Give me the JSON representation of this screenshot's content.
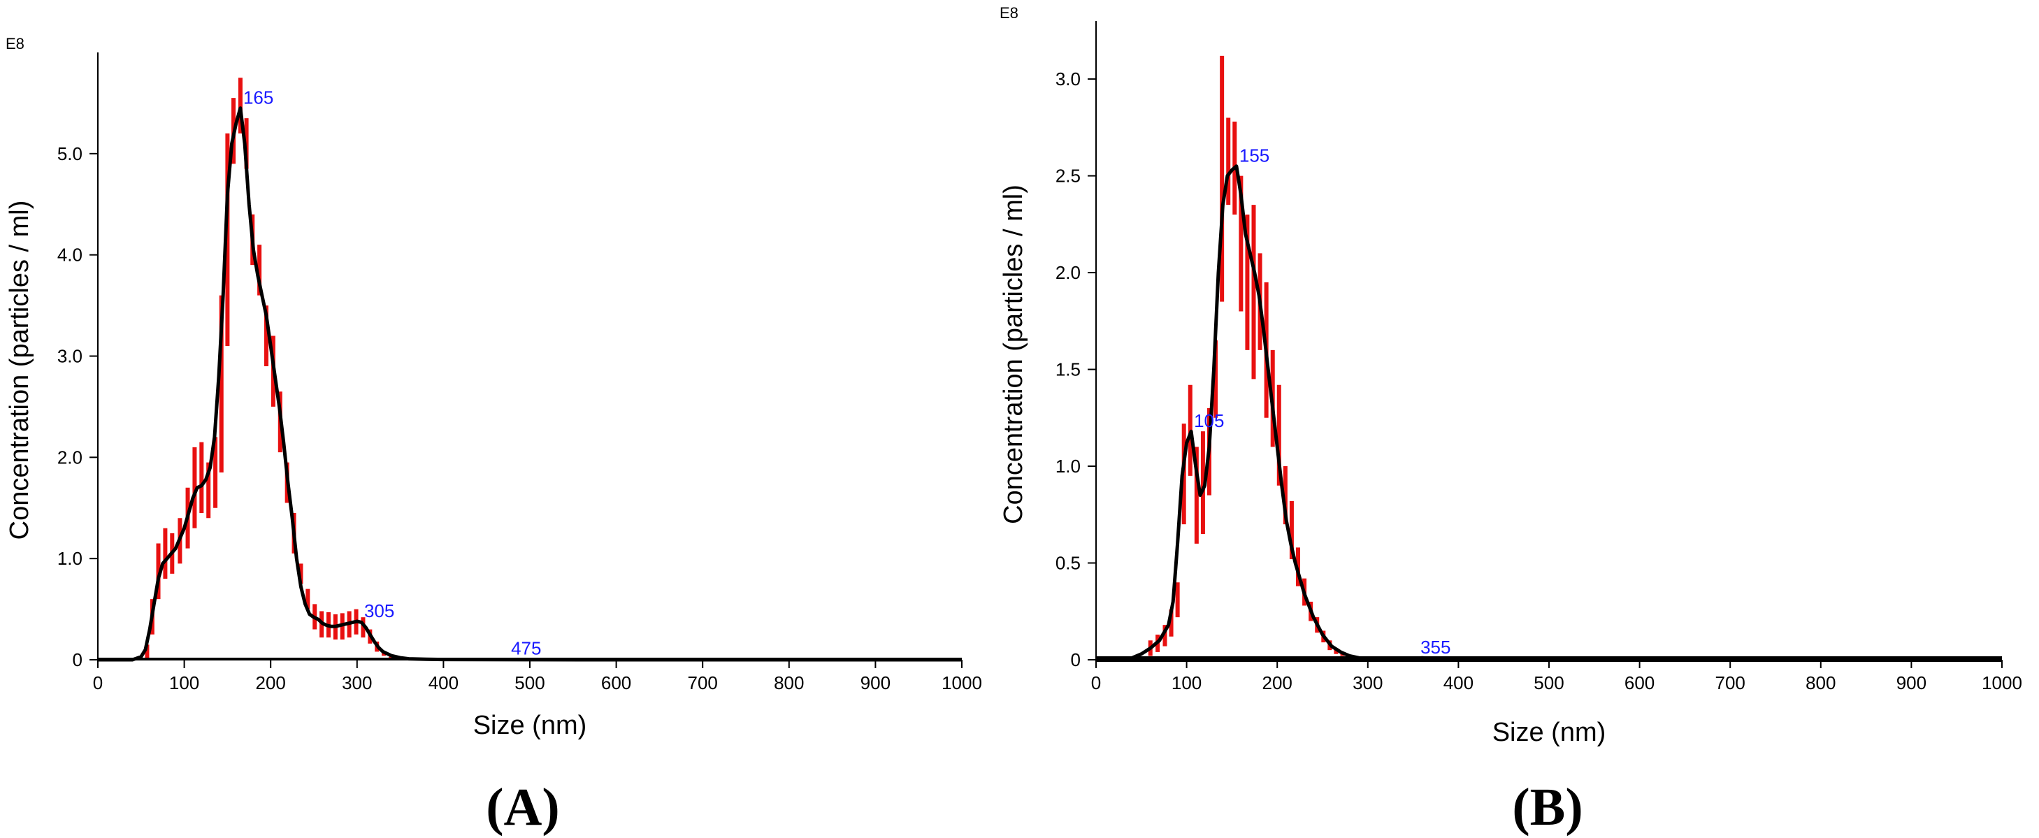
{
  "chart_data": [
    {
      "type": "line",
      "panel_label": "(A)",
      "xlabel": "Size (nm)",
      "ylabel": "Concentration (particles / ml)",
      "y_exponent_label": "E8",
      "xlim": [
        0,
        1000
      ],
      "ylim": [
        0,
        6.0
      ],
      "x_ticks": [
        0,
        100,
        200,
        300,
        400,
        500,
        600,
        700,
        800,
        900,
        1000
      ],
      "y_ticks": [
        0,
        1.0,
        2.0,
        3.0,
        4.0,
        5.0
      ],
      "y_tick_labels": [
        "0",
        "1.0",
        "2.0",
        "3.0",
        "4.0",
        "5.0"
      ],
      "peaks": [
        {
          "label": "165",
          "x": 165,
          "y": 5.45
        },
        {
          "label": "305",
          "x": 305,
          "y": 0.38
        },
        {
          "label": "475",
          "x": 475,
          "y": 0.01
        }
      ],
      "series": [
        {
          "color": "#000000",
          "x": [
            0,
            40,
            50,
            55,
            60,
            65,
            70,
            75,
            80,
            85,
            90,
            95,
            100,
            105,
            110,
            115,
            120,
            125,
            130,
            135,
            140,
            145,
            150,
            155,
            160,
            165,
            170,
            175,
            180,
            185,
            190,
            195,
            200,
            205,
            210,
            215,
            220,
            225,
            230,
            235,
            240,
            245,
            250,
            255,
            260,
            265,
            270,
            275,
            280,
            285,
            290,
            295,
            300,
            305,
            310,
            315,
            320,
            325,
            330,
            340,
            350,
            360,
            380,
            400,
            450,
            500,
            560,
            1000
          ],
          "y": [
            0,
            0,
            0.03,
            0.1,
            0.3,
            0.55,
            0.8,
            0.95,
            1.0,
            1.05,
            1.1,
            1.2,
            1.3,
            1.45,
            1.6,
            1.7,
            1.72,
            1.78,
            1.9,
            2.2,
            2.8,
            3.6,
            4.6,
            5.1,
            5.3,
            5.45,
            5.1,
            4.5,
            4.05,
            3.8,
            3.6,
            3.4,
            3.1,
            2.8,
            2.5,
            2.15,
            1.75,
            1.4,
            1.0,
            0.72,
            0.55,
            0.45,
            0.42,
            0.4,
            0.36,
            0.34,
            0.33,
            0.33,
            0.34,
            0.35,
            0.36,
            0.37,
            0.38,
            0.37,
            0.32,
            0.25,
            0.18,
            0.12,
            0.08,
            0.04,
            0.02,
            0.01,
            0.005,
            0.003,
            0.002,
            0.001,
            0.0,
            0.0
          ]
        }
      ],
      "error_bars": {
        "color": "#e81010",
        "x": [
          57,
          63,
          70,
          78,
          86,
          95,
          104,
          112,
          120,
          128,
          136,
          143,
          150,
          157,
          165,
          172,
          179,
          187,
          195,
          203,
          211,
          219,
          227,
          235,
          243,
          251,
          259,
          267,
          275,
          283,
          291,
          299,
          307,
          315,
          323,
          331,
          339,
          347
        ],
        "lo": [
          0.02,
          0.25,
          0.6,
          0.8,
          0.85,
          0.95,
          1.1,
          1.3,
          1.45,
          1.4,
          1.5,
          1.85,
          3.1,
          4.9,
          5.2,
          4.85,
          3.9,
          3.6,
          2.9,
          2.5,
          2.05,
          1.55,
          1.05,
          0.75,
          0.5,
          0.3,
          0.22,
          0.22,
          0.2,
          0.2,
          0.22,
          0.25,
          0.22,
          0.16,
          0.08,
          0.04,
          0.01,
          0.0
        ],
        "hi": [
          0.15,
          0.6,
          1.15,
          1.3,
          1.25,
          1.4,
          1.7,
          2.1,
          2.15,
          1.95,
          2.2,
          3.6,
          5.2,
          5.55,
          5.75,
          5.35,
          4.4,
          4.1,
          3.5,
          3.2,
          2.65,
          1.95,
          1.45,
          0.95,
          0.7,
          0.55,
          0.48,
          0.47,
          0.45,
          0.46,
          0.48,
          0.5,
          0.42,
          0.3,
          0.18,
          0.08,
          0.03,
          0.01
        ]
      }
    },
    {
      "type": "line",
      "panel_label": "(B)",
      "xlabel": "Size (nm)",
      "ylabel": "Concentration (particles / ml)",
      "y_exponent_label": "E8",
      "xlim": [
        0,
        1000
      ],
      "ylim": [
        0,
        3.3
      ],
      "x_ticks": [
        0,
        100,
        200,
        300,
        400,
        500,
        600,
        700,
        800,
        900,
        1000
      ],
      "y_ticks": [
        0,
        0.5,
        1.0,
        1.5,
        2.0,
        2.5,
        3.0
      ],
      "y_tick_labels": [
        "0",
        "0.5",
        "1.0",
        "1.5",
        "2.0",
        "2.5",
        "3.0"
      ],
      "peaks": [
        {
          "label": "105",
          "x": 105,
          "y": 1.18
        },
        {
          "label": "155",
          "x": 155,
          "y": 2.55
        },
        {
          "label": "355",
          "x": 355,
          "y": 0.01
        }
      ],
      "series": [
        {
          "color": "#000000",
          "x": [
            0,
            30,
            40,
            50,
            60,
            70,
            80,
            85,
            90,
            95,
            100,
            105,
            110,
            115,
            120,
            125,
            130,
            135,
            140,
            145,
            150,
            155,
            160,
            165,
            170,
            175,
            180,
            185,
            190,
            195,
            200,
            205,
            210,
            215,
            220,
            225,
            230,
            240,
            250,
            260,
            270,
            280,
            290,
            300,
            320,
            340,
            360,
            380,
            400,
            1000
          ],
          "y": [
            0,
            0,
            0.01,
            0.03,
            0.06,
            0.1,
            0.18,
            0.3,
            0.6,
            0.95,
            1.12,
            1.18,
            1.0,
            0.85,
            0.9,
            1.1,
            1.5,
            2.0,
            2.35,
            2.5,
            2.53,
            2.55,
            2.4,
            2.2,
            2.1,
            2.0,
            1.88,
            1.7,
            1.5,
            1.3,
            1.1,
            0.9,
            0.72,
            0.6,
            0.5,
            0.42,
            0.34,
            0.22,
            0.13,
            0.07,
            0.04,
            0.02,
            0.01,
            0.005,
            0.003,
            0.002,
            0.01,
            0.004,
            0.0,
            0.0
          ]
        }
      ],
      "error_bars": {
        "color": "#e81010",
        "x": [
          60,
          68,
          76,
          83,
          90,
          97,
          104,
          111,
          118,
          125,
          132,
          139,
          146,
          153,
          160,
          167,
          174,
          181,
          188,
          195,
          202,
          209,
          216,
          223,
          230,
          237,
          244,
          251,
          258,
          265,
          272
        ],
        "lo": [
          0.02,
          0.04,
          0.07,
          0.12,
          0.22,
          0.7,
          0.95,
          0.6,
          0.65,
          0.85,
          1.25,
          1.85,
          2.35,
          2.3,
          1.8,
          1.6,
          1.45,
          1.6,
          1.25,
          1.1,
          0.9,
          0.7,
          0.52,
          0.38,
          0.28,
          0.2,
          0.14,
          0.09,
          0.05,
          0.03,
          0.02
        ],
        "hi": [
          0.1,
          0.13,
          0.18,
          0.26,
          0.4,
          1.22,
          1.42,
          1.1,
          1.18,
          1.3,
          1.65,
          3.12,
          2.8,
          2.78,
          2.5,
          2.3,
          2.35,
          2.1,
          1.95,
          1.6,
          1.42,
          1.0,
          0.82,
          0.58,
          0.42,
          0.3,
          0.22,
          0.15,
          0.1,
          0.06,
          0.04
        ]
      }
    }
  ]
}
